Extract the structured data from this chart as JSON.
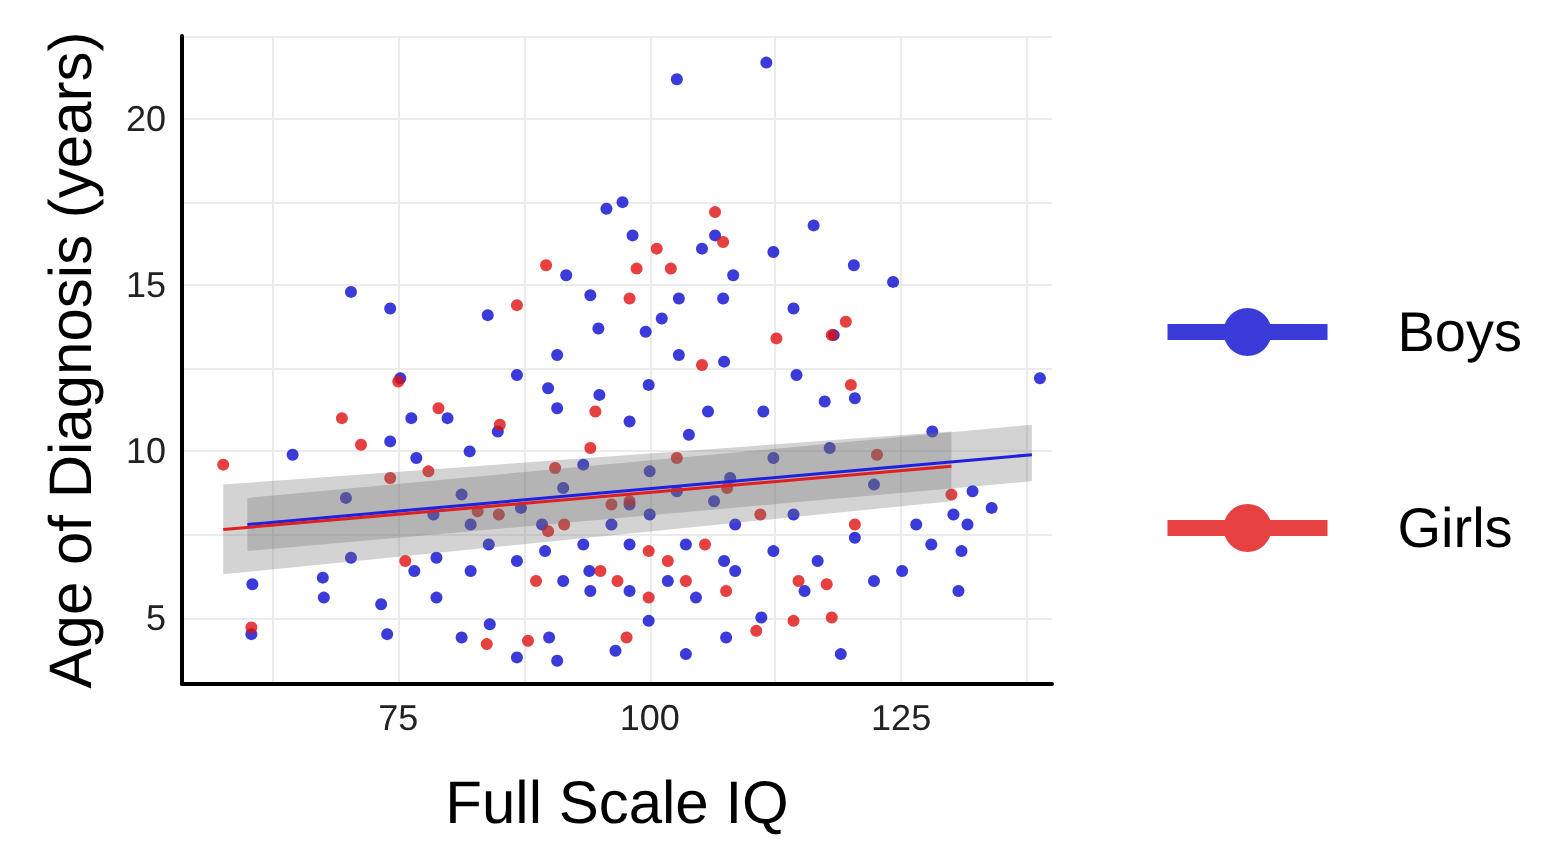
{
  "chart_data": {
    "type": "scatter",
    "xlabel": "Full Scale IQ",
    "ylabel": "Age of Diagnosis (years)",
    "xlim": [
      53.5,
      140
    ],
    "ylim": [
      3,
      22.5
    ],
    "xticks": [
      {
        "value": 62.5,
        "label": null
      },
      75,
      {
        "value": 87.5,
        "label": null
      },
      100,
      {
        "value": 112.5,
        "label": null
      },
      125,
      {
        "value": 137.5,
        "label": null
      }
    ],
    "yticks": [
      5,
      {
        "value": 7.5,
        "label": null
      },
      10,
      {
        "value": 12.5,
        "label": null
      },
      15,
      {
        "value": 17.5,
        "label": null
      },
      20,
      {
        "value": 22.5,
        "label": null
      }
    ],
    "grid": true,
    "legend": "right",
    "marker": "circle",
    "series": [
      {
        "name": "Boys",
        "color": "#0a0ad0",
        "x": [
          111.6,
          102.7,
          97.3,
          95.7,
          116.3,
          106.5,
          112.3,
          105.2,
          120.3,
          124.2,
          70.3,
          74.2,
          91.7,
          94.1,
          83.9,
          107.3,
          114.3,
          118.3,
          99.6,
          75.2,
          86.8,
          90.8,
          107.4,
          138.8,
          120.4,
          76.3,
          79.9,
          90.8,
          98.0,
          103.9,
          111.3,
          128.1,
          64.5,
          74.2,
          76.8,
          82.1,
          93.4,
          100.0,
          112.3,
          117.9,
          69.8,
          81.3,
          87.2,
          98.0,
          106.4,
          122.3,
          132.1,
          134.0,
          60.5,
          60.4,
          67.5,
          67.6,
          70.3,
          73.3,
          73.9,
          78.8,
          81.3,
          84.1,
          86.8,
          90.0,
          90.8,
          94.1,
          96.6,
          98.0,
          99.9,
          103.6,
          104.6,
          107.6,
          111.1,
          115.4,
          119.0,
          122.3,
          125.1,
          130.7,
          131.0,
          130.2,
          131.6,
          128.0,
          126.5,
          120.4,
          116.7,
          112.3,
          108.5,
          107.4,
          103.6,
          101.8,
          98.0,
          94.0,
          93.4,
          91.4,
          89.6,
          86.8,
          84.0,
          82.2,
          78.8,
          76.6,
          100.0,
          102.7,
          96.2,
          91.4,
          89.3,
          82.2,
          78.5,
          108.5,
          114.3,
          108.0,
          105.8,
          99.9,
          95.0,
          102.9,
          101.2,
          94.9,
          102.9,
          108.3,
          98.3,
          89.9,
          84.9,
          114.6,
          117.4
        ],
        "values": [
          21.7,
          21.2,
          17.5,
          17.3,
          16.8,
          16.5,
          16.0,
          16.1,
          15.6,
          15.1,
          14.8,
          14.3,
          15.3,
          14.7,
          14.1,
          14.6,
          14.3,
          13.5,
          13.6,
          12.2,
          12.3,
          12.9,
          12.7,
          12.2,
          11.6,
          11.0,
          11.0,
          11.3,
          10.9,
          10.5,
          11.2,
          10.6,
          9.9,
          10.3,
          9.8,
          10.0,
          9.6,
          9.4,
          9.8,
          10.1,
          8.6,
          8.7,
          8.3,
          8.4,
          8.5,
          9.0,
          8.8,
          8.3,
          6.0,
          4.5,
          6.2,
          5.6,
          6.8,
          5.4,
          4.5,
          5.6,
          4.4,
          4.8,
          3.8,
          4.4,
          3.7,
          5.8,
          4.0,
          5.8,
          4.9,
          3.9,
          5.6,
          4.4,
          5.0,
          5.8,
          3.9,
          6.1,
          6.4,
          5.8,
          7.0,
          8.1,
          7.8,
          7.2,
          7.8,
          7.4,
          6.7,
          7.0,
          6.4,
          6.7,
          7.2,
          6.1,
          7.2,
          6.4,
          7.2,
          6.1,
          7.0,
          6.7,
          7.2,
          6.4,
          6.8,
          6.4,
          8.1,
          8.8,
          7.8,
          8.9,
          7.8,
          7.8,
          8.1,
          7.8,
          8.1,
          9.2,
          11.2,
          12.0,
          11.7,
          12.9,
          14.0,
          13.7,
          14.6,
          15.3,
          16.5,
          11.9,
          10.6,
          12.3,
          11.5
        ]
      },
      {
        "name": "Girls",
        "color": "#e01010",
        "x": [
          57.6,
          60.4,
          69.4,
          71.3,
          74.2,
          75.0,
          79.0,
          78.0,
          83.8,
          85.1,
          86.8,
          89.7,
          89.9,
          87.9,
          94.6,
          94.1,
          98.7,
          100.7,
          102.1,
          98.0,
          106.5,
          107.3,
          105.2,
          97.7,
          96.8,
          95.1,
          99.9,
          101.8,
          103.6,
          105.5,
          107.6,
          110.6,
          112.6,
          118.1,
          119.5,
          120.0,
          122.6,
          130.0,
          120.4,
          117.6,
          114.8,
          114.3,
          118.1,
          111.0,
          107.7,
          90.6,
          88.7,
          85.0,
          82.9,
          98.0,
          102.7,
          96.2,
          91.5,
          99.9,
          75.7
        ],
        "values": [
          9.6,
          4.7,
          11.0,
          10.2,
          9.2,
          12.1,
          11.3,
          9.4,
          4.2,
          10.8,
          14.4,
          15.6,
          7.6,
          4.3,
          11.2,
          10.1,
          15.5,
          16.1,
          15.5,
          14.6,
          17.2,
          16.3,
          12.6,
          4.4,
          6.1,
          6.4,
          7.0,
          6.7,
          6.1,
          7.2,
          5.8,
          4.6,
          13.4,
          13.5,
          13.9,
          12.0,
          9.9,
          8.7,
          7.8,
          6.0,
          6.1,
          4.9,
          5.0,
          8.1,
          8.9,
          9.5,
          6.1,
          8.1,
          8.2,
          8.5,
          9.8,
          8.4,
          7.8,
          5.6,
          6.7
        ]
      },
      {
        "type": "line",
        "marker": "none",
        "color": "#2020e0",
        "x": [
          60,
          138
        ],
        "values": [
          7.8,
          9.9
        ],
        "lower": [
          7.0,
          9.1
        ],
        "upper": [
          8.6,
          10.8
        ]
      },
      {
        "type": "line",
        "marker": "none",
        "color": "#e02020",
        "x": [
          57.6,
          130
        ],
        "values": [
          7.65,
          9.55
        ],
        "lower": [
          6.3,
          8.5
        ],
        "upper": [
          9.0,
          10.6
        ]
      }
    ]
  }
}
